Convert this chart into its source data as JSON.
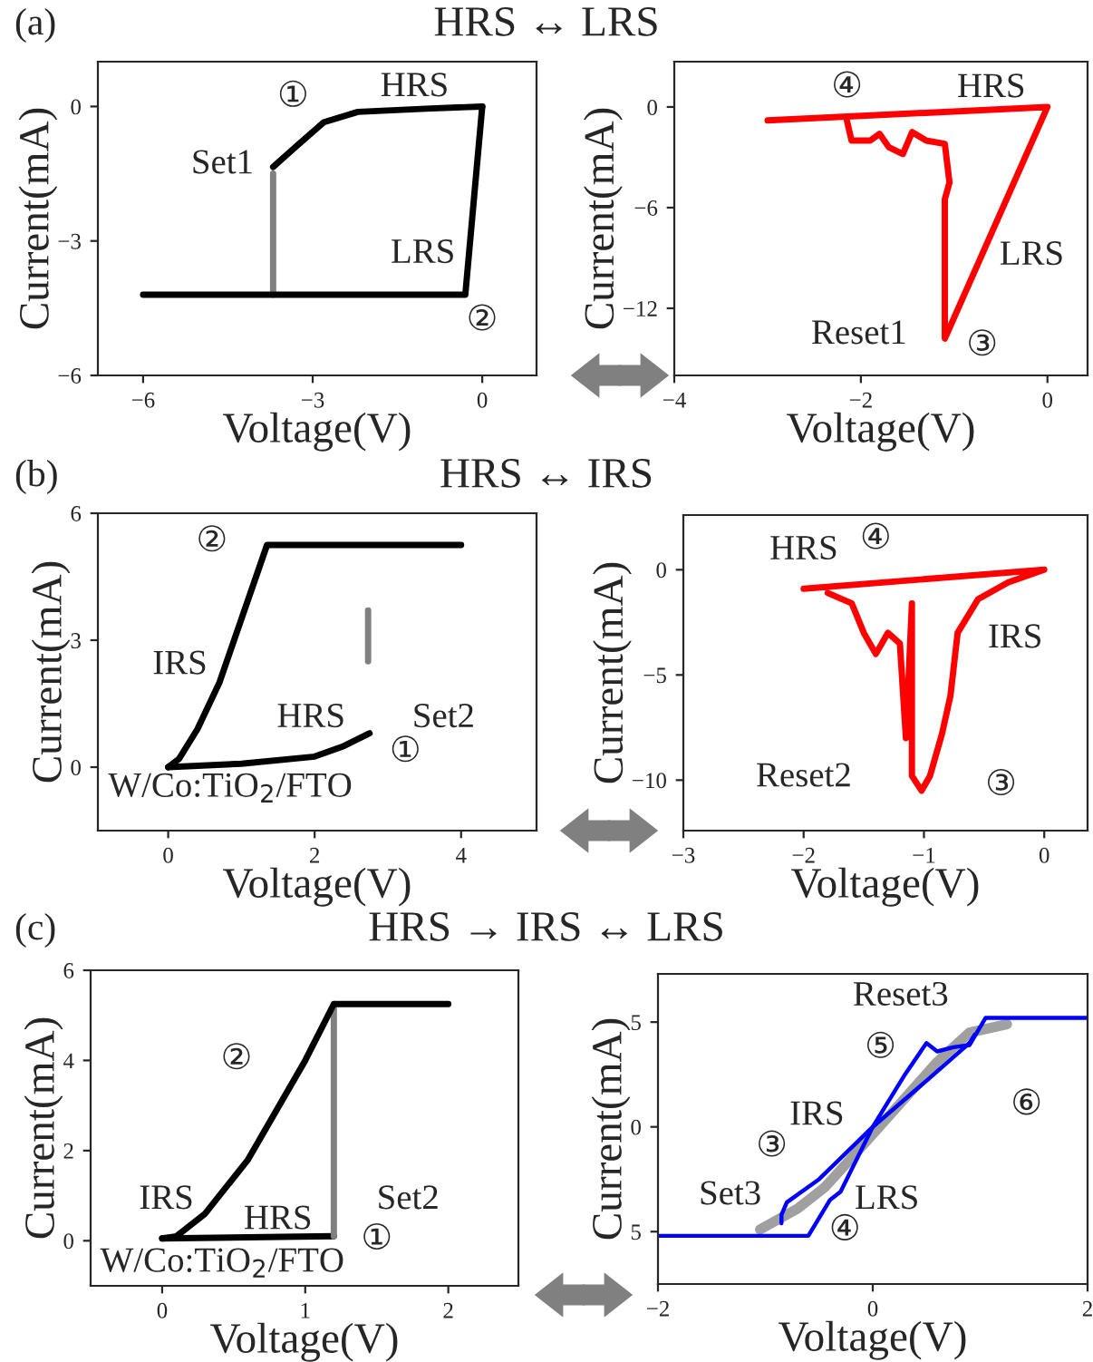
{
  "chart_data": [
    {
      "type": "line",
      "title": "HRS ↔ LRS",
      "xlabel": "Voltage(V)",
      "ylabel": "Current(mA)",
      "xlim": [
        -6.8,
        0.96
      ],
      "ylim": [
        -6,
        1
      ],
      "xticks": [
        -6,
        -3,
        0
      ],
      "yticks": [
        -6,
        -3,
        0
      ],
      "legend": false,
      "grid": false,
      "series": [
        {
          "color": "#000000",
          "x": [
            0,
            -1.0,
            -2.2,
            -2.8,
            -3.3,
            -3.7
          ],
          "values": [
            0,
            -0.05,
            -0.12,
            -0.35,
            -0.9,
            -1.35
          ]
        },
        {
          "color": "#808080",
          "x": [
            -3.7,
            -3.7
          ],
          "values": [
            -1.5,
            -4.2
          ]
        },
        {
          "color": "#000000",
          "x": [
            -6,
            -0.3,
            0
          ],
          "values": [
            -4.2,
            -4.2,
            0
          ]
        }
      ],
      "annotations": [
        "(a)",
        "①",
        "HRS",
        "Set1",
        "LRS",
        "②"
      ]
    },
    {
      "type": "line",
      "xlabel": "Voltage(V)",
      "ylabel": "Current(mA)",
      "xlim": [
        -4,
        0.43
      ],
      "ylim": [
        -16,
        2.7
      ],
      "xticks": [
        -4,
        -2,
        0
      ],
      "yticks": [
        -12,
        -6,
        0
      ],
      "legend": false,
      "grid": false,
      "series": [
        {
          "color": "#ff0000",
          "x": [
            -3,
            0,
            -1.1,
            -1.1,
            -1.05,
            -1.1,
            -1.3,
            -1.45,
            -1.55,
            -1.7,
            -1.8,
            -1.9,
            -2.1,
            -2.15
          ],
          "values": [
            -0.8,
            0,
            -13.8,
            -5.5,
            -4.5,
            -2.2,
            -2.0,
            -1.5,
            -2.8,
            -2.4,
            -1.6,
            -2.0,
            -2.0,
            -0.8
          ]
        }
      ],
      "annotations": [
        "④",
        "HRS",
        "LRS",
        "Reset1",
        "③"
      ]
    },
    {
      "type": "line",
      "title": "HRS ↔ IRS",
      "xlabel": "Voltage(V)",
      "ylabel": "Current(mA)",
      "xlim": [
        -0.96,
        5.03
      ],
      "ylim": [
        -1.5,
        6
      ],
      "xticks": [
        0,
        2,
        4
      ],
      "yticks": [
        0,
        3,
        6
      ],
      "legend": false,
      "grid": false,
      "series": [
        {
          "color": "#000000",
          "x": [
            0,
            1,
            2,
            2.4,
            2.75
          ],
          "values": [
            0,
            0.08,
            0.25,
            0.5,
            0.8
          ]
        },
        {
          "color": "#808080",
          "x": [
            2.73,
            2.73
          ],
          "values": [
            2.5,
            3.7
          ]
        },
        {
          "color": "#000000",
          "x": [
            4,
            1.35,
            1.0,
            0.7,
            0.4,
            0.15,
            0
          ],
          "values": [
            5.25,
            5.25,
            3.5,
            2.0,
            0.9,
            0.2,
            0
          ]
        }
      ],
      "annotations": [
        "(b)",
        "②",
        "IRS",
        "HRS",
        "Set2",
        "①",
        "W/Co:TiO$_{2}$/FTO"
      ]
    },
    {
      "type": "line",
      "xlabel": "Voltage(V)",
      "ylabel": "Current(mA)",
      "xlim": [
        -3,
        0.36
      ],
      "ylim": [
        -12.4,
        2.6
      ],
      "xticks": [
        -3,
        -2,
        -1,
        0
      ],
      "yticks": [
        -10,
        -5,
        0
      ],
      "legend": false,
      "grid": false,
      "series": [
        {
          "color": "#ff0000",
          "x": [
            -2.0,
            0,
            -0.3,
            -0.55,
            -0.72,
            -0.78,
            -0.85,
            -0.95,
            -1.02,
            -1.1,
            -1.1,
            -1.15,
            -1.2,
            -1.3,
            -1.4,
            -1.5,
            -1.6,
            -1.8
          ],
          "values": [
            -0.9,
            0,
            -0.6,
            -1.4,
            -3.0,
            -6.0,
            -7.8,
            -9.8,
            -10.5,
            -9.8,
            -1.6,
            -8.0,
            -3.5,
            -3.0,
            -4.0,
            -3.0,
            -1.6,
            -1.1
          ]
        }
      ],
      "annotations": [
        "HRS",
        "④",
        "IRS",
        "Reset2",
        "③"
      ]
    },
    {
      "type": "line",
      "title": "HRS → IRS ↔ LRS",
      "xlabel": "Voltage(V)",
      "ylabel": "Current(mA)",
      "xlim": [
        -0.5,
        2.49
      ],
      "ylim": [
        -1,
        6
      ],
      "xticks": [
        0,
        1,
        2
      ],
      "yticks": [
        0,
        2,
        4,
        6
      ],
      "legend": false,
      "grid": false,
      "series": [
        {
          "color": "#000000",
          "x": [
            0,
            1.2
          ],
          "values": [
            0.05,
            0.1
          ]
        },
        {
          "color": "#808080",
          "x": [
            1.2,
            1.2
          ],
          "values": [
            0.1,
            5.25
          ]
        },
        {
          "color": "#000000",
          "x": [
            2,
            1.2,
            1.0,
            0.6,
            0.3,
            0.1,
            0
          ],
          "values": [
            5.25,
            5.25,
            4.0,
            1.8,
            0.6,
            0.1,
            0.05
          ]
        }
      ],
      "annotations": [
        "(c)",
        "②",
        "IRS",
        "HRS",
        "Set2",
        "①",
        "W/Co:TiO$_{2}$/FTO"
      ]
    },
    {
      "type": "line",
      "xlabel": "Voltage(V)",
      "ylabel": "Current(mA)",
      "xlim": [
        -2,
        2
      ],
      "ylim": [
        -7.5,
        7.3
      ],
      "xticks": [
        -2,
        0,
        2
      ],
      "yticks": [
        {
          "value": -5,
          "label": "5"
        },
        0,
        5
      ],
      "legend": false,
      "grid": false,
      "series": [
        {
          "color": "#a0a0a0",
          "x": [
            -1.05,
            -0.7,
            -0.45,
            -0.2,
            0.6,
            0.9,
            1.25
          ],
          "values": [
            -4.9,
            -3.9,
            -2.9,
            -1.5,
            3.1,
            4.5,
            4.9
          ]
        },
        {
          "color": "#0000ff",
          "x": [
            -2,
            -0.6,
            -0.4,
            -0.3,
            0,
            0.3,
            0.5,
            0.6,
            0.75,
            0.9,
            1.05,
            2
          ],
          "values": [
            -5.2,
            -5.2,
            -3.5,
            -3.1,
            0,
            2.5,
            4.0,
            3.6,
            3.8,
            3.9,
            5.2,
            5.2
          ]
        },
        {
          "color": "#0000ff",
          "x": [
            0.95,
            0.9,
            0.5,
            0,
            -0.5,
            -0.8,
            -0.85,
            -0.85
          ],
          "values": [
            4.4,
            4.0,
            2.2,
            0,
            -2.5,
            -3.6,
            -4.2,
            -4.6
          ]
        }
      ],
      "annotations": [
        "Reset3",
        "⑤",
        "⑥",
        "IRS",
        "③",
        "Set3",
        "LRS",
        "④"
      ]
    }
  ]
}
